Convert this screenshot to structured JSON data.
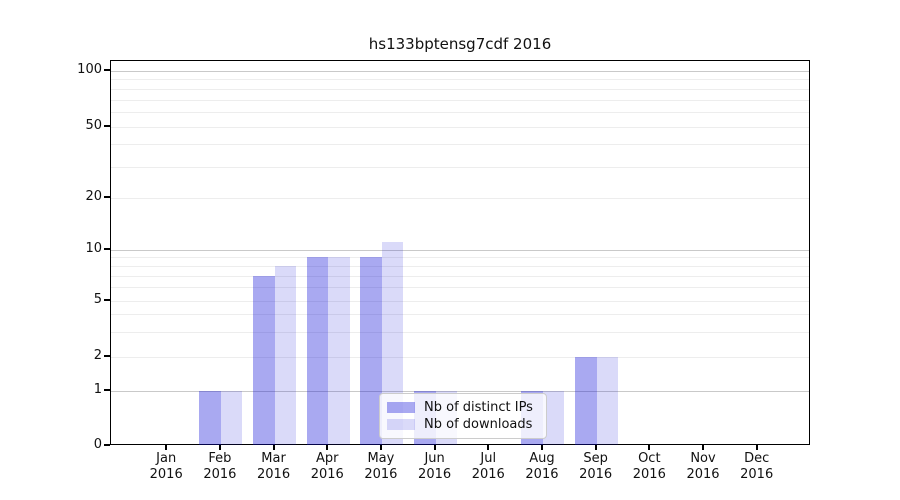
{
  "chart_data": {
    "type": "bar",
    "title": "hs133bptensg7cdf 2016",
    "categories": [
      "Jan",
      "Feb",
      "Mar",
      "Apr",
      "May",
      "Jun",
      "Jul",
      "Aug",
      "Sep",
      "Oct",
      "Nov",
      "Dec"
    ],
    "category_year": "2016",
    "series": [
      {
        "name": "Nb of distinct IPs",
        "values": [
          0,
          1,
          7,
          9,
          9,
          1,
          0,
          1,
          2,
          0,
          0,
          0
        ]
      },
      {
        "name": "Nb of downloads",
        "values": [
          0,
          1,
          8,
          9,
          11,
          1,
          0,
          1,
          2,
          0,
          0,
          0
        ]
      }
    ],
    "xlabel": "",
    "ylabel": "",
    "yscale": "symlog",
    "ylim": [
      0,
      130
    ],
    "yticks": [
      0,
      1,
      2,
      5,
      10,
      20,
      50,
      100
    ],
    "grid": {
      "on": true,
      "major_lines": [
        1,
        10,
        100
      ],
      "minor_lines": [
        2,
        3,
        4,
        5,
        6,
        7,
        8,
        9,
        20,
        30,
        40,
        50,
        60,
        70,
        80,
        90
      ]
    },
    "legend": {
      "position": "lower-center-inside"
    }
  },
  "colors": {
    "bar_base": "#0a0ad6",
    "series_alphas": [
      0.35,
      0.15
    ],
    "grid_major": "#c9c9c9",
    "grid_minor": "#ededed",
    "axis": "#000000",
    "text": "#111111"
  }
}
